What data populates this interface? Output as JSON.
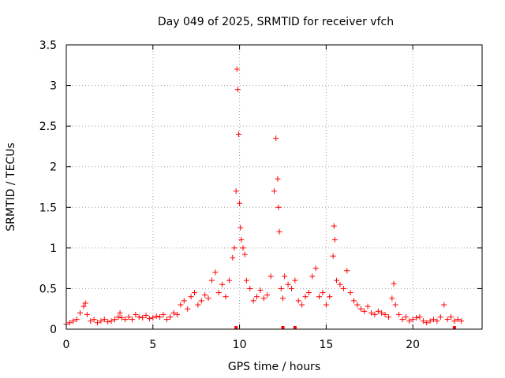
{
  "chart_data": {
    "type": "scatter",
    "title": "Day 049 of 2025, SRMTID for receiver vfch",
    "xlabel": "GPS time / hours",
    "ylabel": "SRMTID / TECUs",
    "xlim": [
      0,
      24
    ],
    "ylim": [
      0,
      3.5
    ],
    "xticks": [
      0,
      5,
      10,
      15,
      20
    ],
    "yticks": [
      0,
      0.5,
      1,
      1.5,
      2,
      2.5,
      3,
      3.5
    ],
    "xtick_labels": [
      "0",
      "5",
      "10",
      "15",
      "20"
    ],
    "ytick_labels": [
      "0",
      "0.5",
      "1",
      "1.5",
      "2",
      "2.5",
      "3",
      "3.5"
    ],
    "grid": true,
    "marker": "+",
    "color": "#ff0000",
    "series": [
      {
        "name": "SRMTID",
        "x": [
          0.0,
          0.2,
          0.4,
          0.6,
          0.8,
          1.0,
          1.1,
          1.2,
          1.4,
          1.6,
          1.8,
          2.0,
          2.2,
          2.4,
          2.6,
          2.8,
          3.0,
          3.1,
          3.2,
          3.4,
          3.6,
          3.8,
          4.0,
          4.2,
          4.4,
          4.6,
          4.8,
          5.0,
          5.2,
          5.4,
          5.6,
          5.8,
          6.0,
          6.2,
          6.4,
          6.6,
          6.8,
          7.0,
          7.2,
          7.4,
          7.6,
          7.8,
          8.0,
          8.2,
          8.4,
          8.6,
          8.8,
          9.0,
          9.2,
          9.4,
          9.6,
          9.7,
          9.8,
          9.85,
          9.9,
          9.95,
          10.0,
          10.05,
          10.1,
          10.2,
          10.3,
          10.4,
          10.6,
          10.8,
          11.0,
          11.2,
          11.4,
          11.6,
          11.8,
          12.0,
          12.1,
          12.2,
          12.25,
          12.3,
          12.4,
          12.5,
          12.6,
          12.8,
          13.0,
          13.2,
          13.4,
          13.6,
          13.8,
          14.0,
          14.2,
          14.4,
          14.6,
          14.8,
          15.0,
          15.2,
          15.4,
          15.45,
          15.5,
          15.6,
          15.8,
          16.0,
          16.2,
          16.4,
          16.6,
          16.8,
          17.0,
          17.2,
          17.4,
          17.6,
          17.8,
          18.0,
          18.2,
          18.4,
          18.6,
          18.8,
          18.9,
          19.0,
          19.2,
          19.4,
          19.6,
          19.8,
          20.0,
          20.2,
          20.4,
          20.6,
          20.8,
          21.0,
          21.2,
          21.4,
          21.6,
          21.8,
          22.0,
          22.2,
          22.4,
          22.6,
          22.8
        ],
        "y": [
          0.06,
          0.08,
          0.1,
          0.12,
          0.2,
          0.28,
          0.32,
          0.18,
          0.1,
          0.12,
          0.08,
          0.1,
          0.12,
          0.09,
          0.1,
          0.12,
          0.15,
          0.2,
          0.14,
          0.12,
          0.15,
          0.12,
          0.18,
          0.15,
          0.14,
          0.17,
          0.13,
          0.14,
          0.16,
          0.15,
          0.18,
          0.12,
          0.15,
          0.2,
          0.18,
          0.3,
          0.35,
          0.25,
          0.4,
          0.45,
          0.3,
          0.35,
          0.42,
          0.38,
          0.6,
          0.7,
          0.45,
          0.55,
          0.4,
          0.6,
          0.88,
          1.0,
          1.7,
          3.2,
          2.95,
          2.4,
          1.55,
          1.25,
          1.1,
          1.0,
          0.92,
          0.6,
          0.5,
          0.35,
          0.4,
          0.48,
          0.38,
          0.42,
          0.65,
          1.7,
          2.35,
          1.85,
          1.5,
          1.2,
          0.5,
          0.38,
          0.65,
          0.55,
          0.5,
          0.6,
          0.35,
          0.3,
          0.4,
          0.45,
          0.65,
          0.75,
          0.4,
          0.45,
          0.3,
          0.4,
          0.9,
          1.27,
          1.1,
          0.6,
          0.55,
          0.5,
          0.72,
          0.45,
          0.35,
          0.3,
          0.25,
          0.22,
          0.28,
          0.2,
          0.18,
          0.22,
          0.2,
          0.18,
          0.15,
          0.38,
          0.56,
          0.3,
          0.18,
          0.12,
          0.15,
          0.1,
          0.12,
          0.14,
          0.15,
          0.1,
          0.08,
          0.1,
          0.12,
          0.1,
          0.15,
          0.3,
          0.12,
          0.15,
          0.1,
          0.12,
          0.1
        ]
      },
      {
        "name": "gaps",
        "x": [
          9.8,
          12.5,
          13.2,
          22.4
        ],
        "y": [
          0.0,
          0.0,
          0.0,
          0.0
        ]
      }
    ]
  }
}
